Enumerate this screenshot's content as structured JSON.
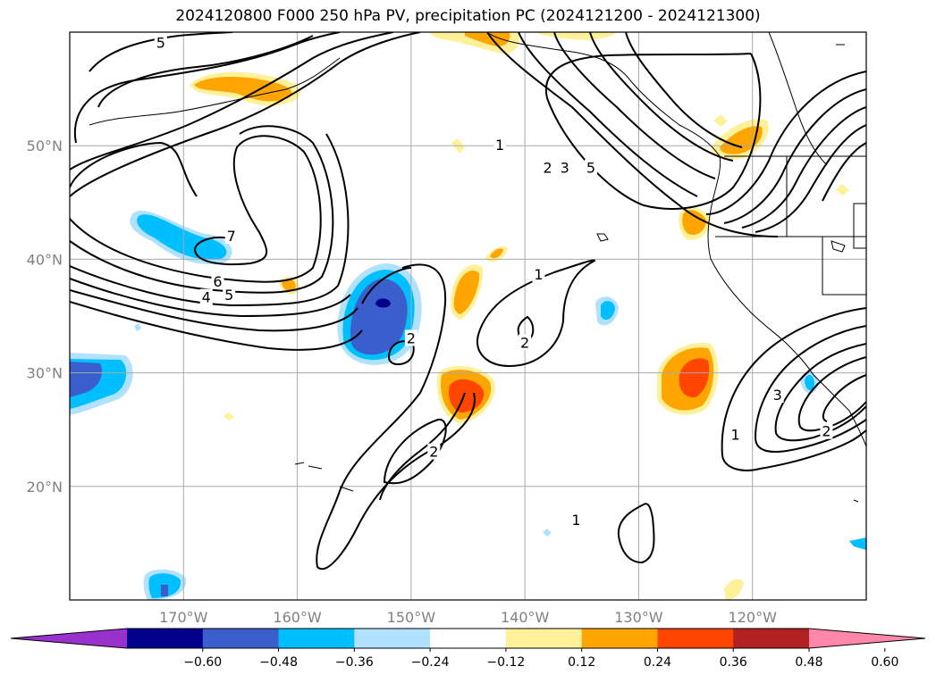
{
  "chart_data": {
    "type": "contour",
    "title": "2024120800 F000 250 hPa PV, precipitation PC (2024121200 - 2024121300)",
    "projection": "cylindrical",
    "xlim": [
      -180,
      -110
    ],
    "ylim": [
      10,
      60
    ],
    "lat_ticks": [
      {
        "value": 20,
        "label": "20°N"
      },
      {
        "value": 30,
        "label": "30°N"
      },
      {
        "value": 40,
        "label": "40°N"
      },
      {
        "value": 50,
        "label": "50°N"
      }
    ],
    "lon_ticks": [
      {
        "value": -170,
        "label": "170°W"
      },
      {
        "value": -160,
        "label": "160°W"
      },
      {
        "value": -150,
        "label": "150°W"
      },
      {
        "value": -140,
        "label": "140°W"
      },
      {
        "value": -130,
        "label": "130°W"
      },
      {
        "value": -120,
        "label": "120°W"
      }
    ],
    "grid": true,
    "pv_contour_labels": [
      {
        "text": "5",
        "lon": -172,
        "lat": 59
      },
      {
        "text": "7",
        "lon": -165.8,
        "lat": 42
      },
      {
        "text": "6",
        "lon": -167,
        "lat": 38
      },
      {
        "text": "4",
        "lon": -168,
        "lat": 36.6
      },
      {
        "text": "5",
        "lon": -166,
        "lat": 36.8
      },
      {
        "text": "2",
        "lon": -150,
        "lat": 33
      },
      {
        "text": "2",
        "lon": -148,
        "lat": 23
      },
      {
        "text": "1",
        "lon": -138.8,
        "lat": 38.6
      },
      {
        "text": "2",
        "lon": -140,
        "lat": 32.6
      },
      {
        "text": "1",
        "lon": -142.2,
        "lat": 50
      },
      {
        "text": "2",
        "lon": -138,
        "lat": 48
      },
      {
        "text": "3",
        "lon": -136.5,
        "lat": 48
      },
      {
        "text": "5",
        "lon": -134.2,
        "lat": 48
      },
      {
        "text": "1",
        "lon": -121.5,
        "lat": 24.5
      },
      {
        "text": "3",
        "lon": -117.8,
        "lat": 28
      },
      {
        "text": "2",
        "lon": -113.5,
        "lat": 24.8
      },
      {
        "text": "1",
        "lon": -135.5,
        "lat": 17
      }
    ],
    "colorbar": {
      "levels": [
        -0.6,
        -0.48,
        -0.36,
        -0.24,
        -0.12,
        0.12,
        0.24,
        0.36,
        0.48,
        0.6
      ],
      "tick_labels": [
        "−0.60",
        "−0.48",
        "−0.36",
        "−0.24",
        "−0.12",
        "0.12",
        "0.24",
        "0.36",
        "0.48",
        "0.60"
      ],
      "colors": [
        "#9932cc",
        "#00008b",
        "#3a5fcd",
        "#00bfff",
        "#b0e2ff",
        "#ffffff",
        "#fff09a",
        "#ffa500",
        "#ff4500",
        "#b22222",
        "#ff88aa"
      ],
      "extend": "both"
    },
    "precip_anomalies": [
      {
        "sign": "negative",
        "peak": -0.48,
        "lon": -152,
        "lat": 36
      },
      {
        "sign": "negative",
        "peak": -0.36,
        "lon": -167,
        "lat": 42
      },
      {
        "sign": "negative",
        "peak": -0.48,
        "lon": -178,
        "lat": 30
      },
      {
        "sign": "negative",
        "peak": -0.36,
        "lon": -170.5,
        "lat": 11.5
      },
      {
        "sign": "negative",
        "peak": -0.24,
        "lon": -133,
        "lat": 36
      },
      {
        "sign": "negative",
        "peak": -0.36,
        "lon": -116,
        "lat": 29
      },
      {
        "sign": "positive",
        "peak": 0.36,
        "lon": -145,
        "lat": 27.5
      },
      {
        "sign": "positive",
        "peak": 0.36,
        "lon": -125,
        "lat": 30
      },
      {
        "sign": "positive",
        "peak": 0.24,
        "lon": -143,
        "lat": 37
      },
      {
        "sign": "positive",
        "peak": 0.24,
        "lon": -163,
        "lat": 56
      },
      {
        "sign": "positive",
        "peak": 0.24,
        "lon": -144,
        "lat": 60
      },
      {
        "sign": "positive",
        "peak": 0.24,
        "lon": -122,
        "lat": 51
      },
      {
        "sign": "positive",
        "peak": 0.24,
        "lon": -124.5,
        "lat": 43.3
      },
      {
        "sign": "positive",
        "peak": 0.24,
        "lon": -160.5,
        "lat": 38.3
      }
    ]
  }
}
